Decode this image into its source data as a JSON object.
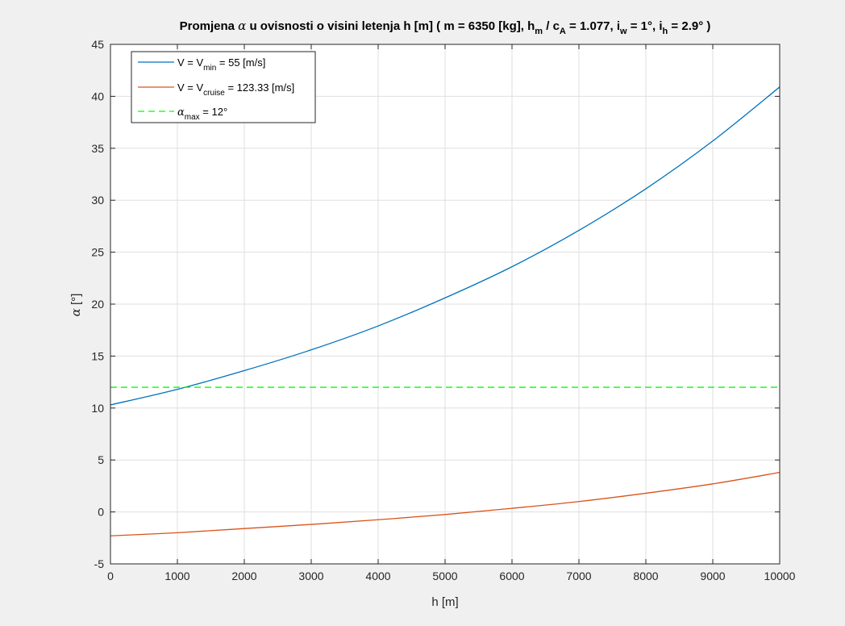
{
  "colors": {
    "figure_bg": "#f0f0f0",
    "axes_bg": "#ffffff",
    "grid": "#dfdfdf",
    "axis": "#262626",
    "series_vmin": "#0072bd",
    "series_vcruise": "#d95319",
    "alpha_max": "#00ff00"
  },
  "chart_data": {
    "type": "line",
    "title": {
      "pre": "Promjena ",
      "alpha": "α",
      "mid": " u ovisnosti o visini letenja h [m] ( m = 6350 [kg], h",
      "sub_m": "m",
      "mid2": " / c",
      "sub_A": "A",
      "mid3": " = 1.077, i",
      "sub_w": "w",
      "mid4": " = 1°, i",
      "sub_h": "h",
      "end": " = 2.9° )"
    },
    "xlabel": "h [m]",
    "ylabel": {
      "alpha": "α",
      "rest": " [°]"
    },
    "xlim": [
      0,
      10000
    ],
    "ylim": [
      -5,
      45
    ],
    "xticks": [
      0,
      1000,
      2000,
      3000,
      4000,
      5000,
      6000,
      7000,
      8000,
      9000,
      10000
    ],
    "yticks": [
      -5,
      0,
      5,
      10,
      15,
      20,
      25,
      30,
      35,
      40,
      45
    ],
    "grid": true,
    "legend_position": "top-left",
    "x": [
      0,
      1000,
      2000,
      3000,
      4000,
      5000,
      6000,
      7000,
      8000,
      9000,
      10000
    ],
    "series": [
      {
        "name": "V = V_min = 55 [m/s]",
        "legend": {
          "pre": "V = V",
          "sub": "min",
          "post": " = 55 [m/s]"
        },
        "values": [
          10.3,
          11.8,
          13.6,
          15.6,
          17.9,
          20.6,
          23.6,
          27.1,
          31.1,
          35.7,
          40.9
        ]
      },
      {
        "name": "V = V_cruise = 123.33 [m/s]",
        "legend": {
          "pre": "V = V",
          "sub": "cruise",
          "post": " = 123.33 [m/s]"
        },
        "values": [
          -2.3,
          -2.0,
          -1.6,
          -1.2,
          -0.75,
          -0.25,
          0.35,
          1.0,
          1.8,
          2.7,
          3.8
        ]
      },
      {
        "name": "α_max = 12°",
        "legend": {
          "pre": "α",
          "sub": "max",
          "post": " = 12°"
        },
        "style": "dashed",
        "values": [
          12,
          12,
          12,
          12,
          12,
          12,
          12,
          12,
          12,
          12,
          12
        ]
      }
    ]
  }
}
